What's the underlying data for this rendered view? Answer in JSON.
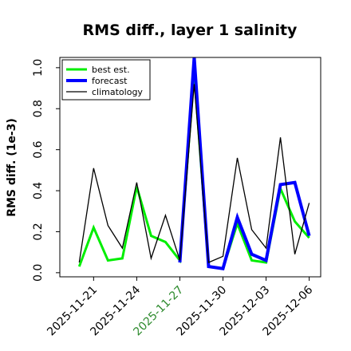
{
  "chart_data": {
    "type": "line",
    "title": "RMS diff., layer 1 salinity",
    "xlabel": "",
    "ylabel": "RMS diff. (1e-3)",
    "ylim": [
      -0.02,
      1.05
    ],
    "yticks": [
      "0.0",
      "0.2",
      "0.4",
      "0.6",
      "0.8",
      "1.0"
    ],
    "xticks": [
      {
        "label": "2025-11-21",
        "color": "#000000"
      },
      {
        "label": "2025-11-24",
        "color": "#000000"
      },
      {
        "label": "2025-11-27",
        "color": "#2e8b2e"
      },
      {
        "label": "2025-11-30",
        "color": "#000000"
      },
      {
        "label": "2025-12-03",
        "color": "#000000"
      },
      {
        "label": "2025-12-06",
        "color": "#000000"
      }
    ],
    "x": [
      "2025-11-20",
      "2025-11-21",
      "2025-11-22",
      "2025-11-23",
      "2025-11-24",
      "2025-11-25",
      "2025-11-26",
      "2025-11-27",
      "2025-11-28",
      "2025-11-29",
      "2025-11-30",
      "2025-12-01",
      "2025-12-02",
      "2025-12-03",
      "2025-12-04",
      "2025-12-05",
      "2025-12-06"
    ],
    "series": [
      {
        "name": "best est.",
        "color": "#00ee00",
        "width": 3,
        "values": [
          0.03,
          0.22,
          0.06,
          0.07,
          0.42,
          0.18,
          0.15,
          0.06,
          0.98,
          0.03,
          0.02,
          0.24,
          0.06,
          0.05,
          0.41,
          0.25,
          0.17
        ]
      },
      {
        "name": "forecast",
        "color": "#0000ff",
        "width": 4,
        "values": [
          null,
          null,
          null,
          null,
          null,
          null,
          null,
          0.05,
          1.05,
          0.03,
          0.02,
          0.27,
          0.09,
          0.06,
          0.43,
          0.44,
          0.18
        ]
      },
      {
        "name": "climatology",
        "color": "#000000",
        "width": 1.3,
        "values": [
          0.05,
          0.51,
          0.23,
          0.12,
          0.44,
          0.07,
          0.28,
          0.06,
          0.92,
          0.05,
          0.08,
          0.56,
          0.21,
          0.12,
          0.66,
          0.09,
          0.34
        ]
      }
    ],
    "legend_position": "top-left",
    "grid": false
  }
}
